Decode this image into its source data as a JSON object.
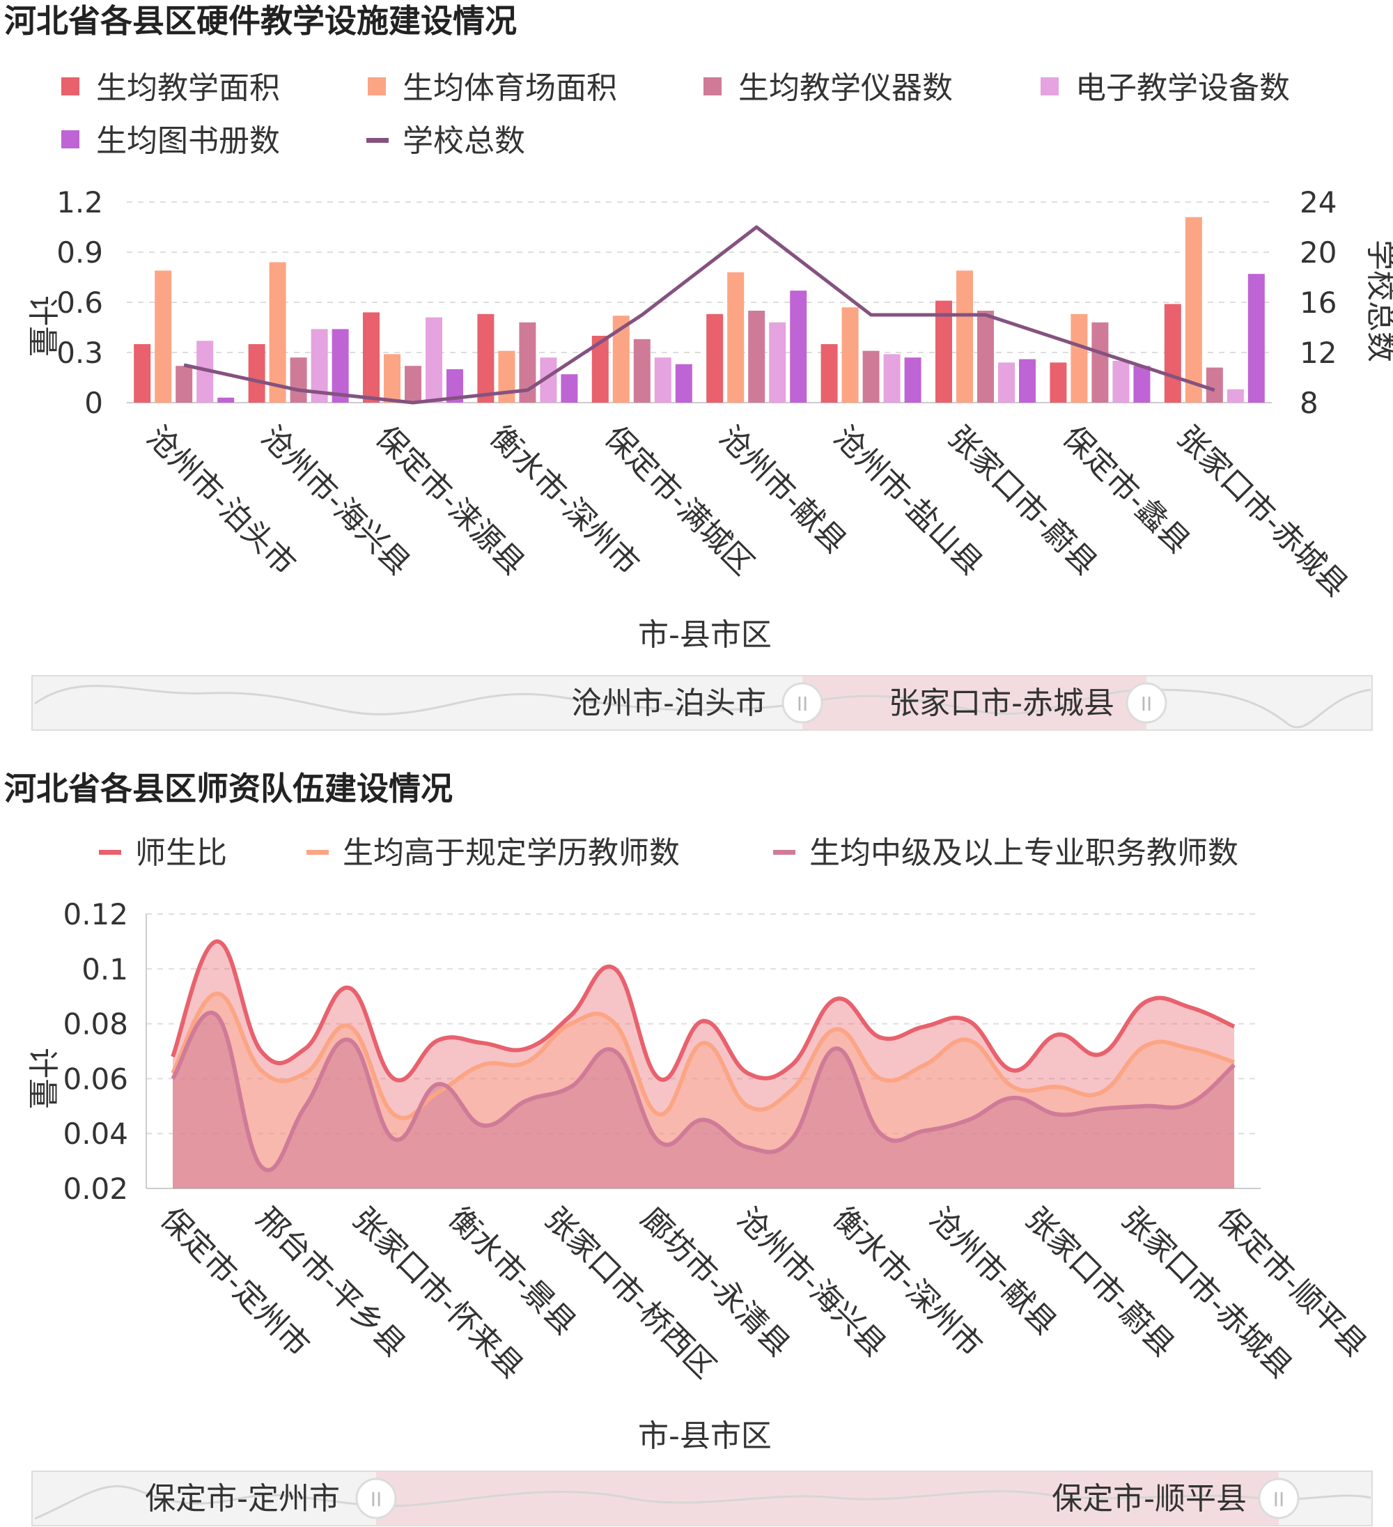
{
  "chart_data": [
    {
      "type": "bar",
      "title": "河北省各县区硬件教学设施建设情况",
      "xlabel": "市-县市区",
      "ylabel": "计量",
      "y2label": "学校总数",
      "ylim": [
        0,
        1.2
      ],
      "y2lim": [
        8,
        24
      ],
      "yticks": [
        "1.2",
        "0.9",
        "0.6",
        "0.3",
        "0"
      ],
      "y2ticks": [
        "24",
        "20",
        "16",
        "12",
        "8"
      ],
      "grid": true,
      "legend_position": "top",
      "categories": [
        "沧州市-泊头市",
        "沧州市-海兴县",
        "保定市-涞源县",
        "衡水市-深州市",
        "保定市-满城区",
        "沧州市-献县",
        "沧州市-盐山县",
        "张家口市-蔚县",
        "保定市-蠡县",
        "张家口市-赤城县"
      ],
      "series": [
        {
          "name": "生均教学面积",
          "kind": "bar",
          "color": "#e8616c",
          "values": [
            0.35,
            0.35,
            0.54,
            0.53,
            0.4,
            0.53,
            0.35,
            0.61,
            0.24,
            0.59
          ]
        },
        {
          "name": "生均体育场面积",
          "kind": "bar",
          "color": "#fca584",
          "values": [
            0.79,
            0.84,
            0.29,
            0.31,
            0.52,
            0.78,
            0.57,
            0.79,
            0.53,
            1.11
          ]
        },
        {
          "name": "生均教学仪器数",
          "kind": "bar",
          "color": "#cf7b98",
          "values": [
            0.22,
            0.27,
            0.22,
            0.48,
            0.38,
            0.55,
            0.31,
            0.55,
            0.48,
            0.21
          ]
        },
        {
          "name": "电子教学设备数",
          "kind": "bar",
          "color": "#e5a3df",
          "values": [
            0.37,
            0.44,
            0.51,
            0.27,
            0.27,
            0.48,
            0.29,
            0.24,
            0.25,
            0.08
          ]
        },
        {
          "name": "生均图书册数",
          "kind": "bar",
          "color": "#bf64d4",
          "values": [
            0.03,
            0.44,
            0.2,
            0.17,
            0.23,
            0.67,
            0.27,
            0.26,
            0.22,
            0.77
          ]
        },
        {
          "name": "学校总数",
          "kind": "line",
          "axis": "right",
          "color": "#85527f",
          "values": [
            11,
            9,
            8,
            9,
            15,
            22,
            15,
            15,
            12,
            9
          ]
        }
      ],
      "zoom": {
        "start_label": "沧州市-泊头市",
        "end_label": "张家口市-赤城县"
      }
    },
    {
      "type": "area",
      "title": "河北省各县区师资队伍建设情况",
      "xlabel": "市-县市区",
      "ylabel": "计量",
      "ylim": [
        0.02,
        0.12
      ],
      "yticks": [
        "0.12",
        "0.1",
        "0.08",
        "0.06",
        "0.04",
        "0.02"
      ],
      "grid": true,
      "legend_position": "top",
      "categories": [
        "保定市-定州市",
        "邢台市-平乡县",
        "张家口市-怀来县",
        "衡水市-景县",
        "张家口市-桥西区",
        "廊坊市-永清县",
        "沧州市-海兴县",
        "衡水市-深州市",
        "沧州市-献县",
        "张家口市-蔚县",
        "张家口市-赤城县",
        "保定市-顺平县"
      ],
      "x": [
        "",
        "",
        "",
        "",
        "",
        "",
        "",
        "",
        "",
        "",
        "",
        "",
        "",
        "",
        "",
        "",
        "",
        "",
        "",
        "",
        "",
        "",
        "",
        "",
        ""
      ],
      "series": [
        {
          "name": "师生比",
          "color": "#e8616c",
          "values": [
            0.068,
            0.11,
            0.07,
            0.071,
            0.093,
            0.06,
            0.074,
            0.073,
            0.071,
            0.083,
            0.1,
            0.06,
            0.081,
            0.062,
            0.065,
            0.089,
            0.075,
            0.079,
            0.081,
            0.063,
            0.076,
            0.069,
            0.088,
            0.086,
            0.079
          ]
        },
        {
          "name": "生均高于规定学历教师数",
          "color": "#fca584",
          "values": [
            0.062,
            0.091,
            0.063,
            0.062,
            0.079,
            0.047,
            0.055,
            0.065,
            0.066,
            0.08,
            0.08,
            0.047,
            0.073,
            0.05,
            0.056,
            0.078,
            0.06,
            0.065,
            0.074,
            0.057,
            0.057,
            0.055,
            0.072,
            0.071,
            0.066
          ]
        },
        {
          "name": "生均中级及以上专业职务教师数",
          "color": "#cf7b98",
          "values": [
            0.06,
            0.083,
            0.028,
            0.05,
            0.074,
            0.038,
            0.058,
            0.043,
            0.052,
            0.057,
            0.07,
            0.037,
            0.045,
            0.035,
            0.038,
            0.071,
            0.04,
            0.041,
            0.045,
            0.053,
            0.047,
            0.049,
            0.05,
            0.051,
            0.065
          ]
        }
      ],
      "zoom": {
        "start_label": "保定市-定州市",
        "end_label": "保定市-顺平县"
      }
    }
  ]
}
